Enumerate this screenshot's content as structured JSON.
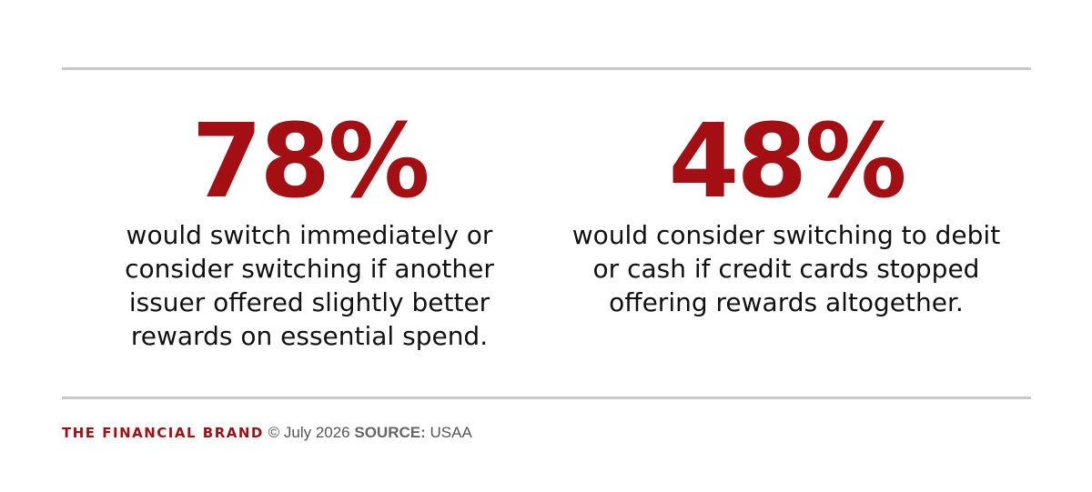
{
  "stats": [
    {
      "value": "78%",
      "description": "would switch immediately or consider switching if another issuer offered slightly better rewards on essential spend."
    },
    {
      "value": "48%",
      "description": "would consider switching to debit or cash if credit cards stopped offering rewards altogether."
    }
  ],
  "footer": {
    "brand": "THE FINANCIAL BRAND",
    "copyright": "© July 2026",
    "source_label": "SOURCE:",
    "source_value": "USAA"
  },
  "colors": {
    "accent": "#a30f12",
    "text": "#111111",
    "rule": "#c8c8c8"
  }
}
